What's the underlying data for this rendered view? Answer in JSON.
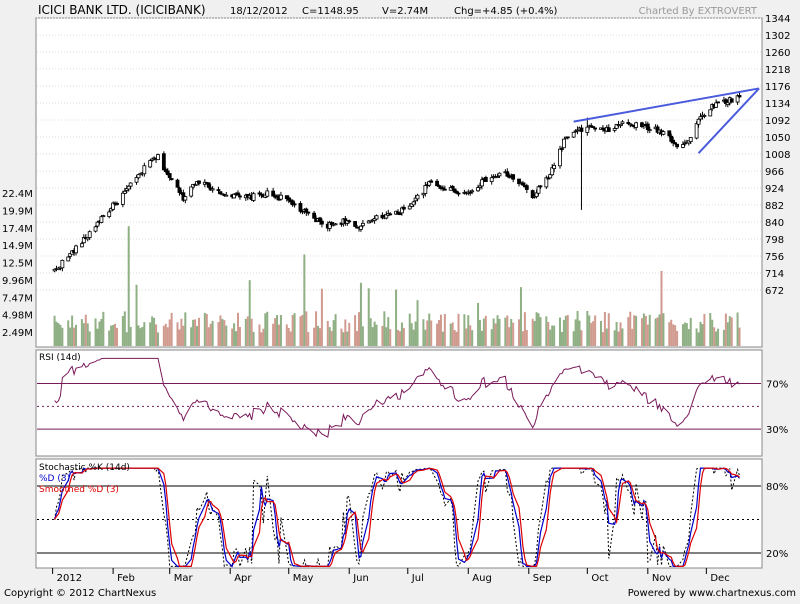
{
  "header": {
    "title": "ICICI BANK LTD. (ICICIBANK)",
    "date": "18/12/2012",
    "close": "C=1148.95",
    "volume": "V=2.74M",
    "change": "Chg=+4.85 (+0.4%)",
    "charted_by": "Charted By EXTROVERT"
  },
  "footer": {
    "copyright": "Copyright © 2012 ChartNexus",
    "powered_by": "Powered by www.chartnexus.com"
  },
  "colors": {
    "background": "#ffffff",
    "frame": "#f0f0f0",
    "candle": "#000000",
    "volume_up": "#8faf84",
    "volume_down": "#d09a8e",
    "trendline": "#4a5bdc",
    "rsi_line": "#7a1a5a",
    "level_line": "#7a1a5a",
    "stoch_k": "#0000cc",
    "stoch_d": "#dd0000",
    "stoch_smooth": "#000000"
  },
  "chart_data": [
    {
      "type": "candlestick",
      "panel": "price",
      "y_ticks": [
        1344,
        1302,
        1260,
        1218,
        1176,
        1134,
        1092,
        1050,
        1008,
        966,
        924,
        882,
        840,
        798,
        756,
        714,
        672
      ],
      "volume_ticks": [
        "22.4M",
        "19.9M",
        "17.4M",
        "14.9M",
        "12.5M",
        "9.96M",
        "7.47M",
        "4.98M",
        "2.49M"
      ],
      "x_labels": [
        "2012",
        "Feb",
        "Mar",
        "Apr",
        "May",
        "Jun",
        "Jul",
        "Aug",
        "Sep",
        "Oct",
        "Nov",
        "Dec"
      ],
      "close_path": [
        [
          "2012-01-02",
          720
        ],
        [
          "2012-01-10",
          760
        ],
        [
          "2012-01-18",
          800
        ],
        [
          "2012-01-25",
          845
        ],
        [
          "2012-02-01",
          880
        ],
        [
          "2012-02-10",
          930
        ],
        [
          "2012-02-20",
          990
        ],
        [
          "2012-02-24",
          1000
        ],
        [
          "2012-03-01",
          950
        ],
        [
          "2012-03-08",
          900
        ],
        [
          "2012-03-15",
          945
        ],
        [
          "2012-03-22",
          925
        ],
        [
          "2012-04-01",
          905
        ],
        [
          "2012-04-10",
          900
        ],
        [
          "2012-04-20",
          910
        ],
        [
          "2012-04-30",
          895
        ],
        [
          "2012-05-10",
          860
        ],
        [
          "2012-05-20",
          830
        ],
        [
          "2012-05-31",
          845
        ],
        [
          "2012-06-05",
          820
        ],
        [
          "2012-06-15",
          855
        ],
        [
          "2012-06-25",
          860
        ],
        [
          "2012-07-05",
          895
        ],
        [
          "2012-07-12",
          935
        ],
        [
          "2012-07-20",
          925
        ],
        [
          "2012-07-31",
          910
        ],
        [
          "2012-08-10",
          945
        ],
        [
          "2012-08-20",
          960
        ],
        [
          "2012-08-28",
          935
        ],
        [
          "2012-09-03",
          900
        ],
        [
          "2012-09-12",
          960
        ],
        [
          "2012-09-20",
          1050
        ],
        [
          "2012-10-01",
          1075
        ],
        [
          "2012-10-10",
          1065
        ],
        [
          "2012-10-20",
          1085
        ],
        [
          "2012-10-31",
          1075
        ],
        [
          "2012-11-10",
          1060
        ],
        [
          "2012-11-16",
          1030
        ],
        [
          "2012-11-22",
          1040
        ],
        [
          "2012-11-28",
          1100
        ],
        [
          "2012-12-05",
          1130
        ],
        [
          "2012-12-12",
          1140
        ],
        [
          "2012-12-18",
          1148.95
        ]
      ],
      "trendline": [
        [
          "2012-09-24",
          1088
        ],
        [
          "2012-12-28",
          1170
        ]
      ],
      "support_line": [
        [
          "2012-11-27",
          1010
        ],
        [
          "2012-12-28",
          1170
        ]
      ]
    },
    {
      "type": "line",
      "panel": "rsi",
      "title": "RSI (14d)",
      "levels": [
        70,
        50,
        30
      ],
      "tick_labels": [
        "70%",
        "30%"
      ]
    },
    {
      "type": "line",
      "panel": "stochastic",
      "title": "Stochastic %K (14d)",
      "series": [
        {
          "name": "%D (3)",
          "color": "#0000cc"
        },
        {
          "name": "Smoothed %D (3)",
          "color": "#dd0000"
        }
      ],
      "levels": [
        80,
        50,
        20
      ],
      "tick_labels": [
        "80%",
        "20%"
      ]
    }
  ]
}
